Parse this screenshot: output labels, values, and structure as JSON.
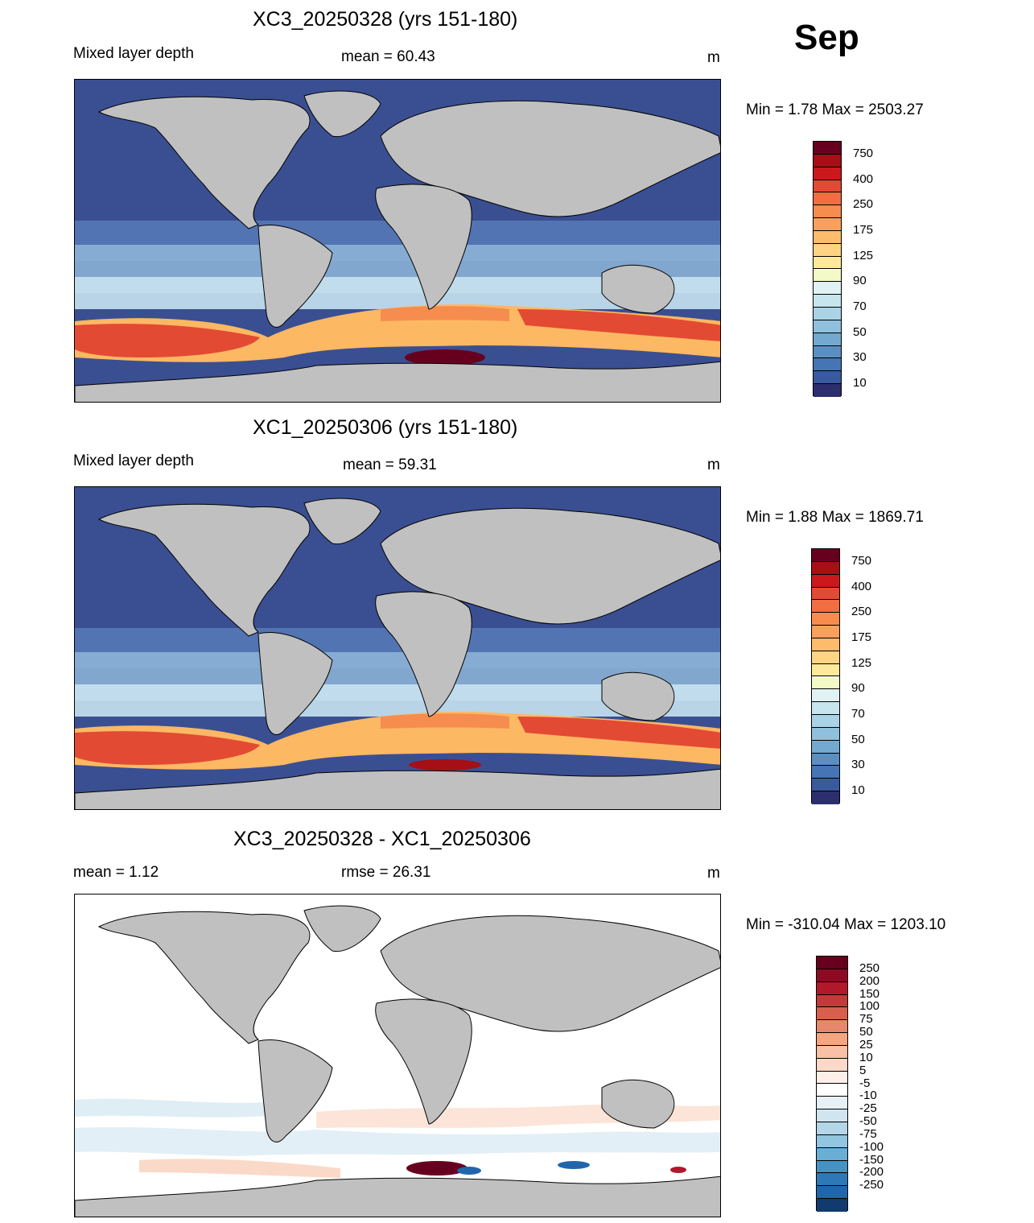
{
  "figure": {
    "month": "Sep",
    "panels": [
      {
        "id": "panel1",
        "title": "XC3_20250328 (yrs 151-180)",
        "left_label": "Mixed layer depth",
        "center_label": "mean =  60.43",
        "units": "m",
        "minmax": "Min =    1.78 Max = 2503.27"
      },
      {
        "id": "panel2",
        "title": "XC1_20250306 (yrs 151-180)",
        "left_label": "Mixed layer depth",
        "center_label": "mean =  59.31",
        "units": "m",
        "minmax": "Min =    1.88 Max = 1869.71"
      },
      {
        "id": "panel3",
        "title": "XC3_20250328 - XC1_20250306",
        "left_label": "mean =    1.12",
        "center_label": "rmse =  26.31",
        "units": "m",
        "minmax": "Min = -310.04 Max = 1203.10"
      }
    ],
    "colorbars": {
      "field": {
        "labels": [
          "750",
          "400",
          "250",
          "175",
          "125",
          "90",
          "70",
          "50",
          "30",
          "10"
        ],
        "colors": [
          "#67001f",
          "#a50f15",
          "#cb181d",
          "#e34a33",
          "#f16d42",
          "#f78c4f",
          "#fba05c",
          "#fdbb6c",
          "#fed384",
          "#fee99a",
          "#f4f9c8",
          "#e0f2f3",
          "#c6e5ef",
          "#abd3e6",
          "#8fc0dd",
          "#74a9cf",
          "#5b8fc3",
          "#4575b4",
          "#3a5a9e",
          "#2d2e6e"
        ]
      },
      "diff": {
        "labels": [
          "250",
          "200",
          "150",
          "100",
          "75",
          "50",
          "25",
          "10",
          "5",
          "-5",
          "-10",
          "-25",
          "-50",
          "-75",
          "-100",
          "-150",
          "-200",
          "-250"
        ],
        "colors": [
          "#67001f",
          "#8e0a23",
          "#b2182b",
          "#c7383b",
          "#d6604d",
          "#e7886e",
          "#f4a582",
          "#f8c0a4",
          "#fbd9c8",
          "#fdf0e8",
          "#ffffff",
          "#e6f0f5",
          "#d1e5f0",
          "#b3d6e8",
          "#92c5de",
          "#6aaed3",
          "#4393c3",
          "#2e78b5",
          "#2166ac",
          "#113a6e"
        ]
      }
    }
  }
}
